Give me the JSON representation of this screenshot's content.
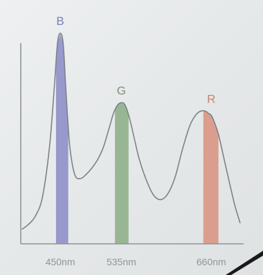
{
  "chart_data": {
    "type": "area",
    "title": "",
    "xlabel": "",
    "ylabel": "",
    "xlim": [
      395,
      705
    ],
    "ylim": [
      0,
      1
    ],
    "grid": false,
    "curve": {
      "x": [
        397,
        405,
        415,
        425,
        435,
        442,
        446,
        450,
        454,
        458,
        463,
        470,
        478,
        486,
        494,
        502,
        510,
        518,
        524,
        530,
        535,
        540,
        546,
        553,
        560,
        570,
        580,
        590,
        600,
        610,
        620,
        630,
        638,
        645,
        652,
        656,
        660,
        664,
        670,
        678,
        686,
        693,
        700
      ],
      "y": [
        0.07,
        0.09,
        0.13,
        0.22,
        0.46,
        0.76,
        0.95,
        1.0,
        0.95,
        0.72,
        0.47,
        0.33,
        0.31,
        0.33,
        0.36,
        0.4,
        0.46,
        0.55,
        0.62,
        0.66,
        0.67,
        0.66,
        0.6,
        0.5,
        0.4,
        0.3,
        0.23,
        0.21,
        0.24,
        0.32,
        0.45,
        0.56,
        0.61,
        0.63,
        0.63,
        0.62,
        0.61,
        0.58,
        0.52,
        0.4,
        0.28,
        0.18,
        0.1
      ]
    },
    "bands": [
      {
        "label": "B",
        "center": 450,
        "x0": 444,
        "x1": 461,
        "peak": 1.0,
        "color": "#8f8fc9",
        "label_color": "#7b7fb4"
      },
      {
        "label": "G",
        "center": 535,
        "x0": 526,
        "x1": 545,
        "peak": 0.67,
        "color": "#8fb08a",
        "label_color": "#7d9079"
      },
      {
        "label": "R",
        "center": 660,
        "x0": 649,
        "x1": 670,
        "peak": 0.63,
        "color": "#d99684",
        "label_color": "#c9826f"
      }
    ],
    "x_ticks": [
      {
        "value": 450,
        "label": "450nm"
      },
      {
        "value": 535,
        "label": "535nm"
      },
      {
        "value": 660,
        "label": "660nm"
      }
    ]
  }
}
